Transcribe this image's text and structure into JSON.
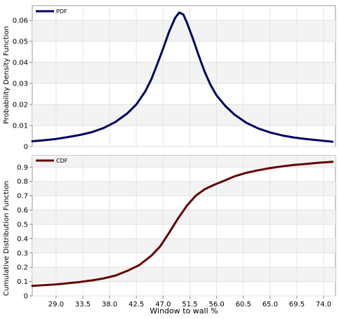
{
  "chart_data": [
    {
      "type": "line",
      "legend": "PDF",
      "ylabel": "Probability Density Function",
      "xlim": [
        25.0,
        76.0
      ],
      "ylim": [
        0,
        0.067
      ],
      "yticks": [
        0,
        0.01,
        0.02,
        0.03,
        0.04,
        0.05,
        0.06
      ],
      "ytick_labels": [
        "0",
        "0.01",
        "0.02",
        "0.03",
        "0.04",
        "0.05",
        "0.06"
      ],
      "grid": true,
      "legend_position": "top-left",
      "color": "#000066",
      "series": [
        {
          "x": [
            25.0,
            27.0,
            29.0,
            31.0,
            33.0,
            35.0,
            37.0,
            39.0,
            41.0,
            42.5,
            44.0,
            45.0,
            46.0,
            47.0,
            48.0,
            49.0,
            49.7,
            50.4,
            51.0,
            52.0,
            53.0,
            54.0,
            55.0,
            56.0,
            57.5,
            59.0,
            61.0,
            63.0,
            65.0,
            67.0,
            69.0,
            71.0,
            73.0,
            75.5
          ],
          "y": [
            0.0025,
            0.003,
            0.0036,
            0.0045,
            0.0055,
            0.0068,
            0.0088,
            0.0117,
            0.0158,
            0.02,
            0.0262,
            0.0318,
            0.039,
            0.0465,
            0.0545,
            0.061,
            0.0637,
            0.0628,
            0.059,
            0.0514,
            0.0432,
            0.0355,
            0.0292,
            0.0243,
            0.0192,
            0.0152,
            0.0113,
            0.0086,
            0.0067,
            0.0053,
            0.0043,
            0.0036,
            0.003,
            0.0023
          ]
        }
      ]
    },
    {
      "type": "line",
      "legend": "CDF",
      "ylabel": "Cumulative Distribution Function",
      "xlabel": "Window to wall %",
      "xlim": [
        25.0,
        76.0
      ],
      "ylim": [
        0,
        0.98
      ],
      "xticks": [
        29.0,
        33.5,
        38.0,
        42.5,
        47.0,
        51.5,
        56.0,
        60.5,
        65.0,
        69.5,
        74.0
      ],
      "xtick_labels": [
        "29.0",
        "33.5",
        "38.0",
        "42.5",
        "47.0",
        "51.5",
        "56.0",
        "60.5",
        "65.0",
        "69.5",
        "74.0"
      ],
      "yticks": [
        0,
        0.1,
        0.2,
        0.3,
        0.4,
        0.5,
        0.6,
        0.7,
        0.8,
        0.9
      ],
      "ytick_labels": [
        "0",
        "0.1",
        "0.2",
        "0.3",
        "0.4",
        "0.5",
        "0.6",
        "0.7",
        "0.8",
        "0.9"
      ],
      "grid": true,
      "legend_position": "top-left",
      "color": "#660000",
      "series": [
        {
          "x": [
            25.0,
            27.0,
            29.0,
            31.0,
            33.0,
            35.0,
            37.0,
            39.0,
            41.0,
            43.0,
            45.0,
            46.5,
            48.0,
            49.5,
            51.0,
            52.5,
            54.0,
            55.5,
            57.0,
            59.0,
            61.0,
            63.0,
            65.0,
            67.0,
            69.0,
            71.0,
            73.0,
            75.5
          ],
          "y": [
            0.07,
            0.075,
            0.08,
            0.088,
            0.097,
            0.108,
            0.122,
            0.142,
            0.175,
            0.215,
            0.28,
            0.345,
            0.44,
            0.54,
            0.63,
            0.7,
            0.745,
            0.775,
            0.8,
            0.835,
            0.86,
            0.878,
            0.893,
            0.905,
            0.915,
            0.922,
            0.93,
            0.937
          ]
        }
      ]
    }
  ]
}
